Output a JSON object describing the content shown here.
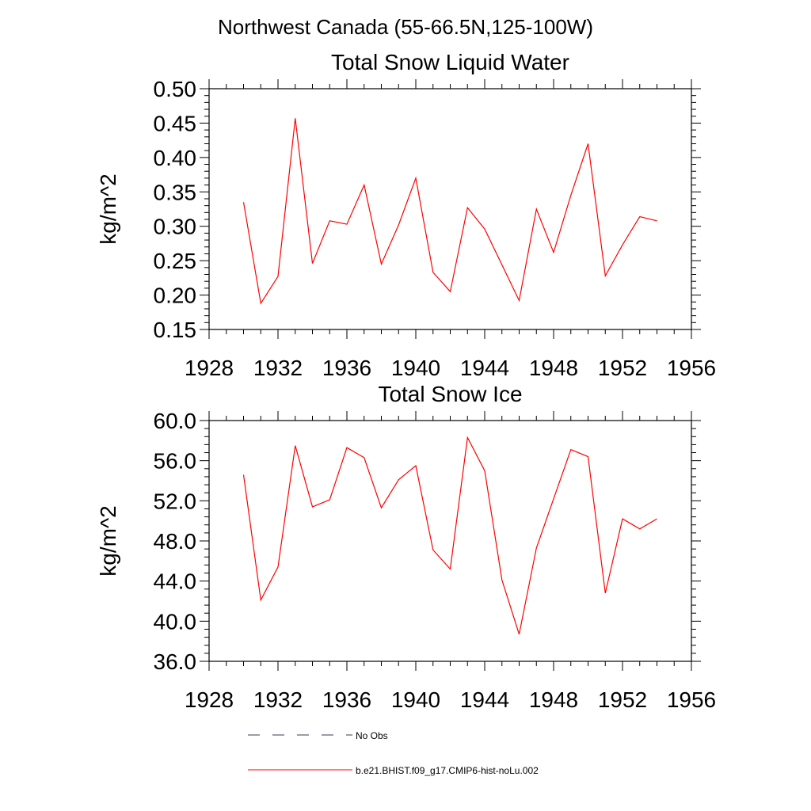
{
  "main_title": "Northwest Canada (55-66.5N,125-100W)",
  "chart_data": [
    {
      "type": "line",
      "title": "Total Snow Liquid Water",
      "xlabel": "",
      "ylabel": "kg/m^2",
      "xlim": [
        1928,
        1956
      ],
      "ylim": [
        0.15,
        0.5
      ],
      "x_ticks": [
        1928,
        1932,
        1936,
        1940,
        1944,
        1948,
        1952,
        1956
      ],
      "x_tick_labels": [
        "1928",
        "1932",
        "1936",
        "1940",
        "1944",
        "1948",
        "1952",
        "1956"
      ],
      "y_ticks": [
        0.15,
        0.2,
        0.25,
        0.3,
        0.35,
        0.4,
        0.45,
        0.5
      ],
      "y_tick_labels": [
        "0.15",
        "0.20",
        "0.25",
        "0.30",
        "0.35",
        "0.40",
        "0.45",
        "0.50"
      ],
      "series": [
        {
          "name": "b.e21.BHIST.f09_g17.CMIP6-hist-noLu.002",
          "color": "#ff0000",
          "x": [
            1930,
            1931,
            1932,
            1933,
            1934,
            1935,
            1936,
            1937,
            1938,
            1939,
            1940,
            1941,
            1942,
            1943,
            1944,
            1945,
            1946,
            1947,
            1948,
            1949,
            1950,
            1951,
            1952,
            1953,
            1954
          ],
          "y": [
            0.335,
            0.188,
            0.227,
            0.457,
            0.246,
            0.308,
            0.303,
            0.36,
            0.245,
            0.302,
            0.37,
            0.233,
            0.205,
            0.327,
            0.296,
            0.244,
            0.192,
            0.325,
            0.262,
            0.345,
            0.42,
            0.228,
            0.273,
            0.314,
            0.308
          ]
        }
      ]
    },
    {
      "type": "line",
      "title": "Total Snow Ice",
      "xlabel": "",
      "ylabel": "kg/m^2",
      "xlim": [
        1928,
        1956
      ],
      "ylim": [
        36.0,
        60.0
      ],
      "x_ticks": [
        1928,
        1932,
        1936,
        1940,
        1944,
        1948,
        1952,
        1956
      ],
      "x_tick_labels": [
        "1928",
        "1932",
        "1936",
        "1940",
        "1944",
        "1948",
        "1952",
        "1956"
      ],
      "y_ticks": [
        36,
        40,
        44,
        48,
        52,
        56,
        60
      ],
      "y_tick_labels": [
        "36.0",
        "40.0",
        "44.0",
        "48.0",
        "52.0",
        "56.0",
        "60.0"
      ],
      "series": [
        {
          "name": "b.e21.BHIST.f09_g17.CMIP6-hist-noLu.002",
          "color": "#ff0000",
          "x": [
            1930,
            1931,
            1932,
            1933,
            1934,
            1935,
            1936,
            1937,
            1938,
            1939,
            1940,
            1941,
            1942,
            1943,
            1944,
            1945,
            1946,
            1947,
            1948,
            1949,
            1950,
            1951,
            1952,
            1953,
            1954
          ],
          "y": [
            54.6,
            42.1,
            45.4,
            57.5,
            51.4,
            52.1,
            57.3,
            56.3,
            51.3,
            54.1,
            55.5,
            47.1,
            45.2,
            58.3,
            55.0,
            44.1,
            38.7,
            47.3,
            52.2,
            57.1,
            56.4,
            42.8,
            50.2,
            49.2,
            50.2
          ]
        }
      ]
    }
  ],
  "legend": {
    "placement": "bottom",
    "items": [
      {
        "label": "No Obs",
        "style": "dashed",
        "color": "#3a3a5a"
      },
      {
        "label": "b.e21.BHIST.f09_g17.CMIP6-hist-noLu.002",
        "style": "solid",
        "color": "#ff0000"
      }
    ]
  }
}
